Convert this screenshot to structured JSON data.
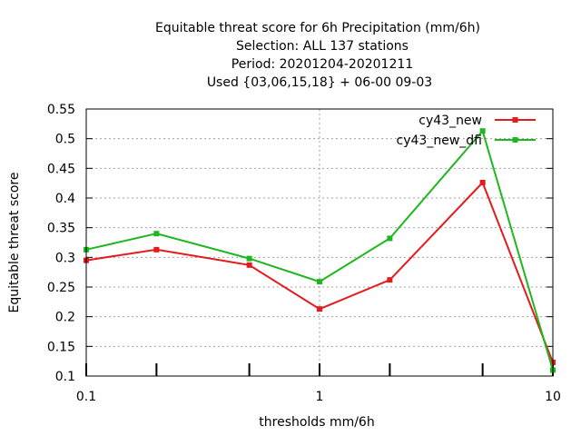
{
  "chart_data": {
    "type": "line",
    "title_lines": [
      "Equitable threat score  for 6h Precipitation (mm/6h)",
      "Selection: ALL     137 stations",
      "Period: 20201204-20201211",
      "Used {03,06,15,18} + 06-00 09-03"
    ],
    "xlabel": "thresholds mm/6h",
    "ylabel": "Equitable threat score",
    "x_scale": "log",
    "xlim": [
      0.1,
      10
    ],
    "ylim": [
      0.1,
      0.55
    ],
    "x_ticks": [
      0.1,
      1,
      10
    ],
    "x_tick_labels": [
      "0.1",
      "1",
      "10"
    ],
    "y_ticks": [
      0.1,
      0.15,
      0.2,
      0.25,
      0.3,
      0.35,
      0.4,
      0.45,
      0.5,
      0.55
    ],
    "y_tick_labels": [
      "0.1",
      "0.15",
      "0.2",
      "0.25",
      "0.3",
      "0.35",
      "0.4",
      "0.45",
      "0.5",
      "0.55"
    ],
    "grid": true,
    "legend_position": "top-right",
    "x": [
      0.1,
      0.2,
      0.5,
      1,
      2,
      5,
      10
    ],
    "series": [
      {
        "name": "cy43_new",
        "color": "#e41a1c",
        "values": [
          0.295,
          0.313,
          0.287,
          0.213,
          0.262,
          0.426,
          0.123
        ]
      },
      {
        "name": "cy43_new_dfi",
        "color": "#1fb71f",
        "values": [
          0.313,
          0.34,
          0.298,
          0.259,
          0.332,
          0.513,
          0.11
        ]
      }
    ]
  }
}
